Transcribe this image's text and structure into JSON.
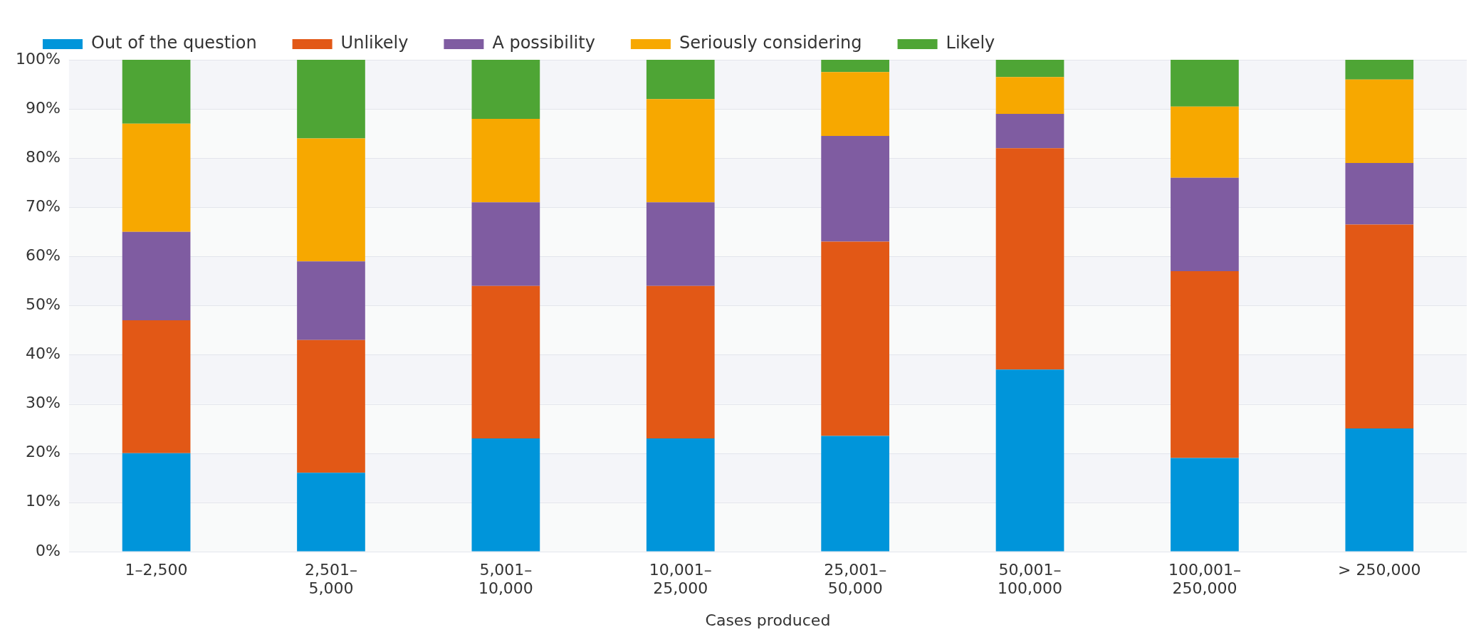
{
  "chart_data": {
    "type": "bar",
    "stacked": true,
    "xlabel": "Cases produced",
    "categories": [
      "1–2,500",
      "2,501–5,000",
      "5,001–10,000",
      "10,001–25,000",
      "25,001–50,000",
      "50,001–100,000",
      "100,001–250,000",
      "> 250,000"
    ],
    "series": [
      {
        "name": "Out of the question",
        "color": "#0095da",
        "values": [
          20,
          16,
          23,
          23,
          23.5,
          37,
          19,
          25
        ]
      },
      {
        "name": "Unlikely",
        "color": "#e25816",
        "values": [
          27,
          27,
          31,
          31,
          39.5,
          45,
          38,
          41.5
        ]
      },
      {
        "name": "A possibility",
        "color": "#7f5ca1",
        "values": [
          18,
          16,
          17,
          17,
          21.5,
          7,
          19,
          12.5
        ]
      },
      {
        "name": "Seriously considering",
        "color": "#f7a800",
        "values": [
          22,
          25,
          17,
          21,
          13,
          7.5,
          14.5,
          17
        ]
      },
      {
        "name": "Likely",
        "color": "#4ea535",
        "values": [
          13,
          16,
          12,
          8,
          2.5,
          3.5,
          9.5,
          4
        ]
      }
    ],
    "ylim": [
      0,
      100
    ],
    "yticks": [
      {
        "value": 0,
        "label": "0%"
      },
      {
        "value": 10,
        "label": "10%"
      },
      {
        "value": 20,
        "label": "20%"
      },
      {
        "value": 30,
        "label": "30%"
      },
      {
        "value": 40,
        "label": "40%"
      },
      {
        "value": 50,
        "label": "50%"
      },
      {
        "value": 60,
        "label": "60%"
      },
      {
        "value": 70,
        "label": "70%"
      },
      {
        "value": 80,
        "label": "80%"
      },
      {
        "value": 90,
        "label": "90%"
      },
      {
        "value": 100,
        "label": "100%"
      }
    ],
    "grid": "y",
    "legend": "top left"
  }
}
